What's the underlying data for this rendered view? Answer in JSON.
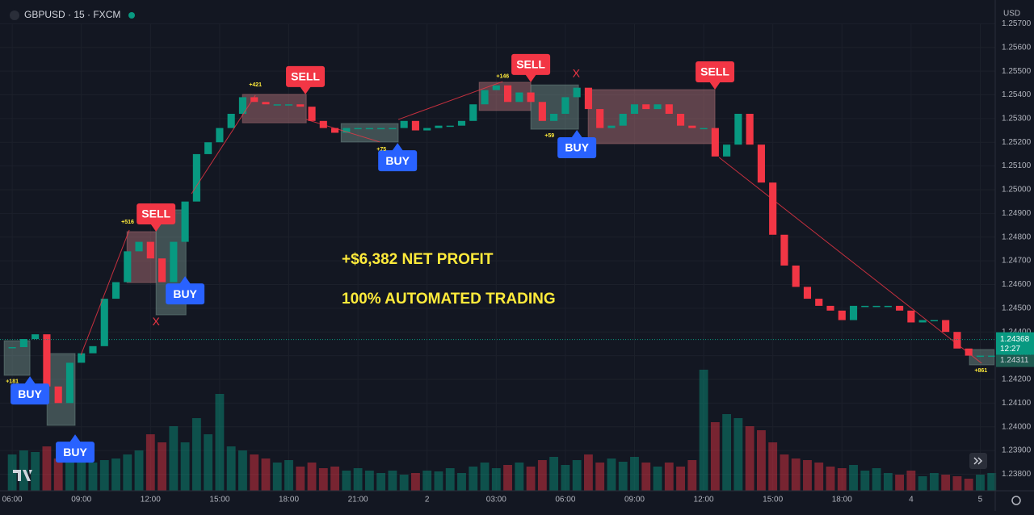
{
  "chart_data": {
    "type": "candlestick",
    "title": "GBPUSD · 15 · FXCM",
    "currency_label": "USD",
    "x": [
      0,
      0.5,
      1,
      1.5,
      2,
      2.5,
      3,
      3.5,
      4,
      4.5,
      5,
      5.5,
      6,
      6.5,
      7,
      7.5,
      8,
      8.5,
      9,
      9.5,
      10,
      10.5,
      11,
      11.5,
      12,
      12.5,
      13,
      13.5,
      14,
      14.5,
      15,
      15.5,
      16,
      16.5,
      17,
      17.5,
      18,
      18.5,
      19,
      19.5,
      20,
      20.5,
      21,
      21.5,
      22,
      22.5,
      23,
      23.5,
      24,
      24.5,
      25,
      25.5,
      26,
      26.5,
      27,
      27.5,
      28,
      28.5,
      29,
      29.5,
      30,
      30.5,
      31,
      31.5,
      32,
      32.5,
      33,
      33.5,
      34,
      34.5,
      35,
      35.5,
      36,
      36.5,
      37,
      37.5,
      38,
      38.5,
      39,
      39.5,
      40,
      40.5,
      41,
      41.5,
      42,
      42.5
    ],
    "close": [
      1.24336,
      1.2437,
      1.2439,
      1.2417,
      1.241,
      1.2427,
      1.2431,
      1.2434,
      1.2454,
      1.2461,
      1.2474,
      1.2478,
      1.2471,
      1.2461,
      1.2478,
      1.2495,
      1.2515,
      1.252,
      1.2526,
      1.2532,
      1.2539,
      1.2537,
      1.2536,
      1.2536,
      1.2536,
      1.2535,
      1.2529,
      1.2526,
      1.2524,
      1.2526,
      1.2526,
      1.2526,
      1.2526,
      1.2526,
      1.2529,
      1.2525,
      1.2526,
      1.2527,
      1.2527,
      1.2529,
      1.2536,
      1.2542,
      1.2544,
      1.2537,
      1.2541,
      1.2537,
      1.2529,
      1.2532,
      1.2539,
      1.2543,
      1.2534,
      1.2526,
      1.2527,
      1.2532,
      1.2536,
      1.2534,
      1.2536,
      1.2532,
      1.2527,
      1.2526,
      1.2526,
      1.2514,
      1.2519,
      1.2532,
      1.2519,
      1.2503,
      1.2481,
      1.2468,
      1.2459,
      1.2454,
      1.2451,
      1.2449,
      1.2445,
      1.2451,
      1.2451,
      1.2451,
      1.2451,
      1.2449,
      1.2444,
      1.2445,
      1.2445,
      1.244,
      1.2433,
      1.243,
      1.243,
      1.243
    ],
    "volume": [
      45,
      50,
      48,
      55,
      40,
      38,
      42,
      35,
      38,
      40,
      45,
      50,
      70,
      60,
      80,
      60,
      90,
      70,
      120,
      55,
      50,
      45,
      40,
      35,
      38,
      30,
      35,
      28,
      30,
      25,
      28,
      25,
      22,
      25,
      20,
      22,
      25,
      24,
      28,
      22,
      30,
      35,
      28,
      32,
      35,
      30,
      38,
      42,
      32,
      38,
      45,
      35,
      40,
      36,
      42,
      35,
      30,
      35,
      30,
      38,
      150,
      85,
      95,
      90,
      80,
      75,
      60,
      45,
      40,
      38,
      35,
      30,
      28,
      32,
      25,
      28,
      22,
      20,
      25,
      18,
      22,
      20,
      18,
      15,
      20,
      22
    ],
    "up_color": "#089981",
    "down_color": "#f23645",
    "xlim": [
      -0.53,
      42.65
    ],
    "ylim": [
      1.2373,
      1.258
    ],
    "xticks": [
      {
        "value": 0,
        "label": "06:00"
      },
      {
        "value": 3,
        "label": "09:00"
      },
      {
        "value": 6,
        "label": "12:00"
      },
      {
        "value": 9,
        "label": "15:00"
      },
      {
        "value": 12,
        "label": "18:00"
      },
      {
        "value": 15,
        "label": "21:00"
      },
      {
        "value": 18,
        "label": "2"
      },
      {
        "value": 21,
        "label": "03:00"
      },
      {
        "value": 24,
        "label": "06:00"
      },
      {
        "value": 27,
        "label": "09:00"
      },
      {
        "value": 30,
        "label": "12:00"
      },
      {
        "value": 33,
        "label": "15:00"
      },
      {
        "value": 36,
        "label": "18:00"
      },
      {
        "value": 39,
        "label": "4"
      },
      {
        "value": 42,
        "label": "5"
      }
    ],
    "yticks": [
      {
        "value": 1.238,
        "label": "1.23800"
      },
      {
        "value": 1.239,
        "label": "1.23900"
      },
      {
        "value": 1.24,
        "label": "1.24000"
      },
      {
        "value": 1.241,
        "label": "1.24100"
      },
      {
        "value": 1.242,
        "label": "1.24200"
      },
      {
        "value": 1.243,
        "label": "1.24300"
      },
      {
        "value": 1.244,
        "label": "1.24400"
      },
      {
        "value": 1.245,
        "label": "1.24500"
      },
      {
        "value": 1.246,
        "label": "1.24600"
      },
      {
        "value": 1.247,
        "label": "1.24700"
      },
      {
        "value": 1.248,
        "label": "1.24800"
      },
      {
        "value": 1.249,
        "label": "1.24900"
      },
      {
        "value": 1.25,
        "label": "1.25000"
      },
      {
        "value": 1.251,
        "label": "1.25100"
      },
      {
        "value": 1.252,
        "label": "1.25200"
      },
      {
        "value": 1.253,
        "label": "1.25300"
      },
      {
        "value": 1.254,
        "label": "1.25400"
      },
      {
        "value": 1.255,
        "label": "1.25500"
      },
      {
        "value": 1.256,
        "label": "1.25600"
      },
      {
        "value": 1.257,
        "label": "1.25700"
      }
    ],
    "grid": true,
    "last_price": {
      "value": 1.24368,
      "label": "1.24368"
    },
    "countdown": "12:27",
    "other_price": {
      "value": 1.24311,
      "label": "1.24311"
    },
    "boxes": [
      {
        "x": [
          -0.35,
          0.77
        ],
        "price": [
          1.24363,
          1.24217
        ],
        "color": "rgba(120,150,145,0.45)"
      },
      {
        "x": [
          1.51,
          2.73
        ],
        "price": [
          1.24309,
          1.24006
        ],
        "color": "rgba(120,150,145,0.45)"
      },
      {
        "x": [
          4.98,
          6.24
        ],
        "price": [
          1.24823,
          1.24608
        ],
        "color": "rgba(170,110,115,0.5)"
      },
      {
        "x": [
          6.24,
          7.54
        ],
        "price": [
          1.24915,
          1.24472
        ],
        "color": "rgba(120,150,145,0.45)"
      },
      {
        "x": [
          9.99,
          12.76
        ],
        "price": [
          1.25402,
          1.25282
        ],
        "color": "rgba(170,110,115,0.5)"
      },
      {
        "x": [
          14.27,
          16.75
        ],
        "price": [
          1.25279,
          1.25201
        ],
        "color": "rgba(120,150,145,0.45)"
      },
      {
        "x": [
          20.26,
          22.5
        ],
        "price": [
          1.25453,
          1.25334
        ],
        "color": "rgba(170,110,115,0.5)"
      },
      {
        "x": [
          22.5,
          24.57
        ],
        "price": [
          1.25442,
          1.25255
        ],
        "color": "rgba(120,150,145,0.45)"
      },
      {
        "x": [
          24.99,
          30.49
        ],
        "price": [
          1.25422,
          1.25194
        ],
        "color": "rgba(170,110,115,0.5)"
      },
      {
        "x": [
          41.53,
          42.6
        ],
        "price": [
          1.24326,
          1.24261
        ],
        "color": "rgba(120,150,145,0.45)"
      }
    ],
    "trade_lines": [
      {
        "x": [
          2.98,
          5.08
        ],
        "price": [
          1.24302,
          1.2483
        ]
      },
      {
        "x": [
          7.78,
          10.55
        ],
        "price": [
          1.24983,
          1.25398
        ]
      },
      {
        "x": [
          12.76,
          15.95
        ],
        "price": [
          1.25296,
          1.25201
        ]
      },
      {
        "x": [
          16.75,
          21.28
        ],
        "price": [
          1.25296,
          1.25456
        ]
      },
      {
        "x": [
          30.67,
          42.06
        ],
        "price": [
          1.25136,
          1.24268
        ]
      }
    ],
    "signals": [
      {
        "label": "BUY",
        "x": 0.77,
        "price": 1.24213,
        "color": "#2962ff",
        "placement": "below"
      },
      {
        "label": "BUY",
        "x": 2.73,
        "price": 1.23968,
        "color": "#2962ff",
        "placement": "below"
      },
      {
        "label": "SELL",
        "x": 6.24,
        "price": 1.24823,
        "color": "#f23645",
        "placement": "above"
      },
      {
        "label": "BUY",
        "x": 7.5,
        "price": 1.24635,
        "color": "#2962ff",
        "placement": "below"
      },
      {
        "label": "SELL",
        "x": 12.72,
        "price": 1.25402,
        "color": "#f23645",
        "placement": "above"
      },
      {
        "label": "BUY",
        "x": 16.72,
        "price": 1.25197,
        "color": "#2962ff",
        "placement": "below"
      },
      {
        "label": "SELL",
        "x": 22.5,
        "price": 1.25453,
        "color": "#f23645",
        "placement": "above"
      },
      {
        "label": "BUY",
        "x": 24.5,
        "price": 1.25252,
        "color": "#2962ff",
        "placement": "below"
      },
      {
        "label": "SELL",
        "x": 30.49,
        "price": 1.25422,
        "color": "#f23645",
        "placement": "above"
      }
    ],
    "exits": [
      {
        "label": "X",
        "x": 6.24,
        "price": 1.24441
      },
      {
        "label": "X",
        "x": 24.47,
        "price": 1.25487
      }
    ],
    "pnl_labels": [
      {
        "label": "+181",
        "x": 0,
        "price": 1.2419
      },
      {
        "label": "+516",
        "x": 5.01,
        "price": 1.24864
      },
      {
        "label": "+421",
        "x": 10.55,
        "price": 1.25442
      },
      {
        "label": "+75",
        "x": 16.02,
        "price": 1.2517
      },
      {
        "label": "+146",
        "x": 21.28,
        "price": 1.25477
      },
      {
        "label": "+59",
        "x": 23.31,
        "price": 1.25228
      },
      {
        "label": "+861",
        "x": 42.03,
        "price": 1.24237
      }
    ],
    "annotations": [
      "+$6,382 NET PROFIT",
      "100% AUTOMATED TRADING"
    ]
  }
}
